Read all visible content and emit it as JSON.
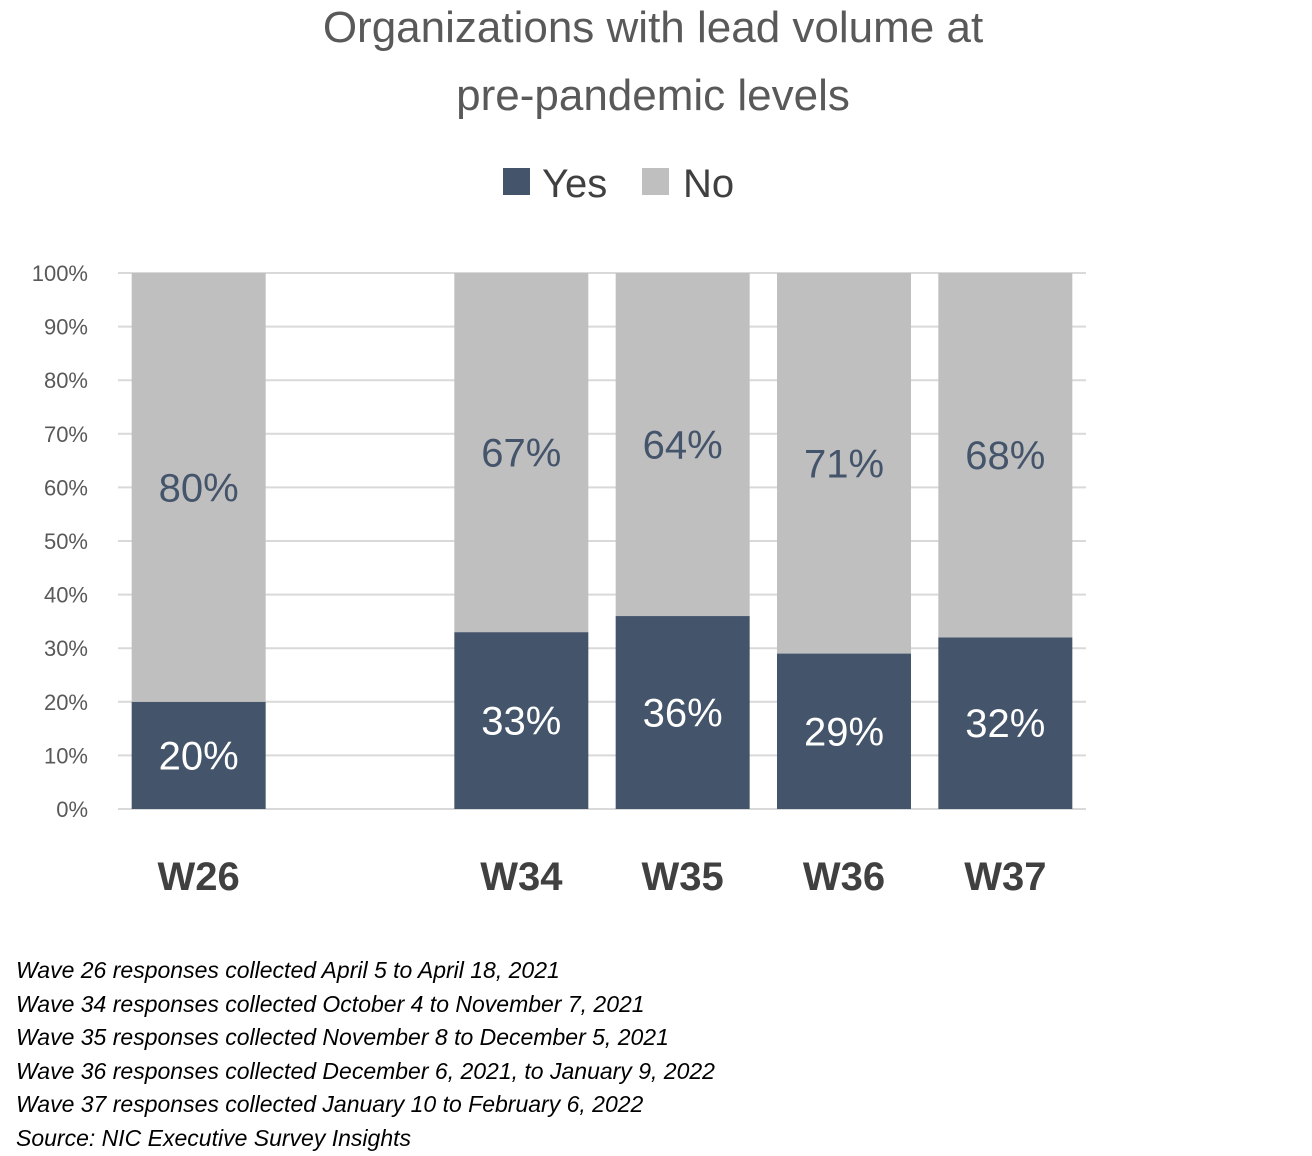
{
  "colors": {
    "yes": "#44546a",
    "no": "#bfbfbf",
    "grid": "#d9d9d9",
    "title": "#595959",
    "axis_text": "#595959",
    "yes_label": "#ffffff",
    "no_label": "#44546a"
  },
  "chart_data": {
    "type": "bar",
    "stacked": true,
    "title": "Organizations with lead volume at pre-pandemic levels",
    "title_lines": [
      "Organizations with lead volume at",
      "pre-pandemic levels"
    ],
    "categories": [
      "W26",
      "",
      "W34",
      "W35",
      "W36",
      "W37"
    ],
    "series": [
      {
        "name": "Yes",
        "values": [
          20,
          null,
          33,
          36,
          29,
          32
        ],
        "labels": [
          "20%",
          "",
          "33%",
          "36%",
          "29%",
          "32%"
        ]
      },
      {
        "name": "No",
        "values": [
          80,
          null,
          67,
          64,
          71,
          68
        ],
        "labels": [
          "80%",
          "",
          "67%",
          "64%",
          "71%",
          "68%"
        ]
      }
    ],
    "ylim": [
      0,
      100
    ],
    "yticks": [
      "0%",
      "10%",
      "20%",
      "30%",
      "40%",
      "50%",
      "60%",
      "70%",
      "80%",
      "90%",
      "100%"
    ],
    "xlabel": "",
    "ylabel": "",
    "grid": true,
    "legend": "top"
  },
  "notes": [
    "Wave 26 responses collected April 5 to April 18, 2021",
    "Wave 34 responses collected October 4 to November 7, 2021",
    "Wave 35 responses collected November 8 to December 5, 2021",
    "Wave 36 responses collected December 6, 2021, to January 9, 2022",
    "Wave 37 responses collected January 10 to February 6, 2022",
    "Source: NIC Executive Survey Insights"
  ]
}
